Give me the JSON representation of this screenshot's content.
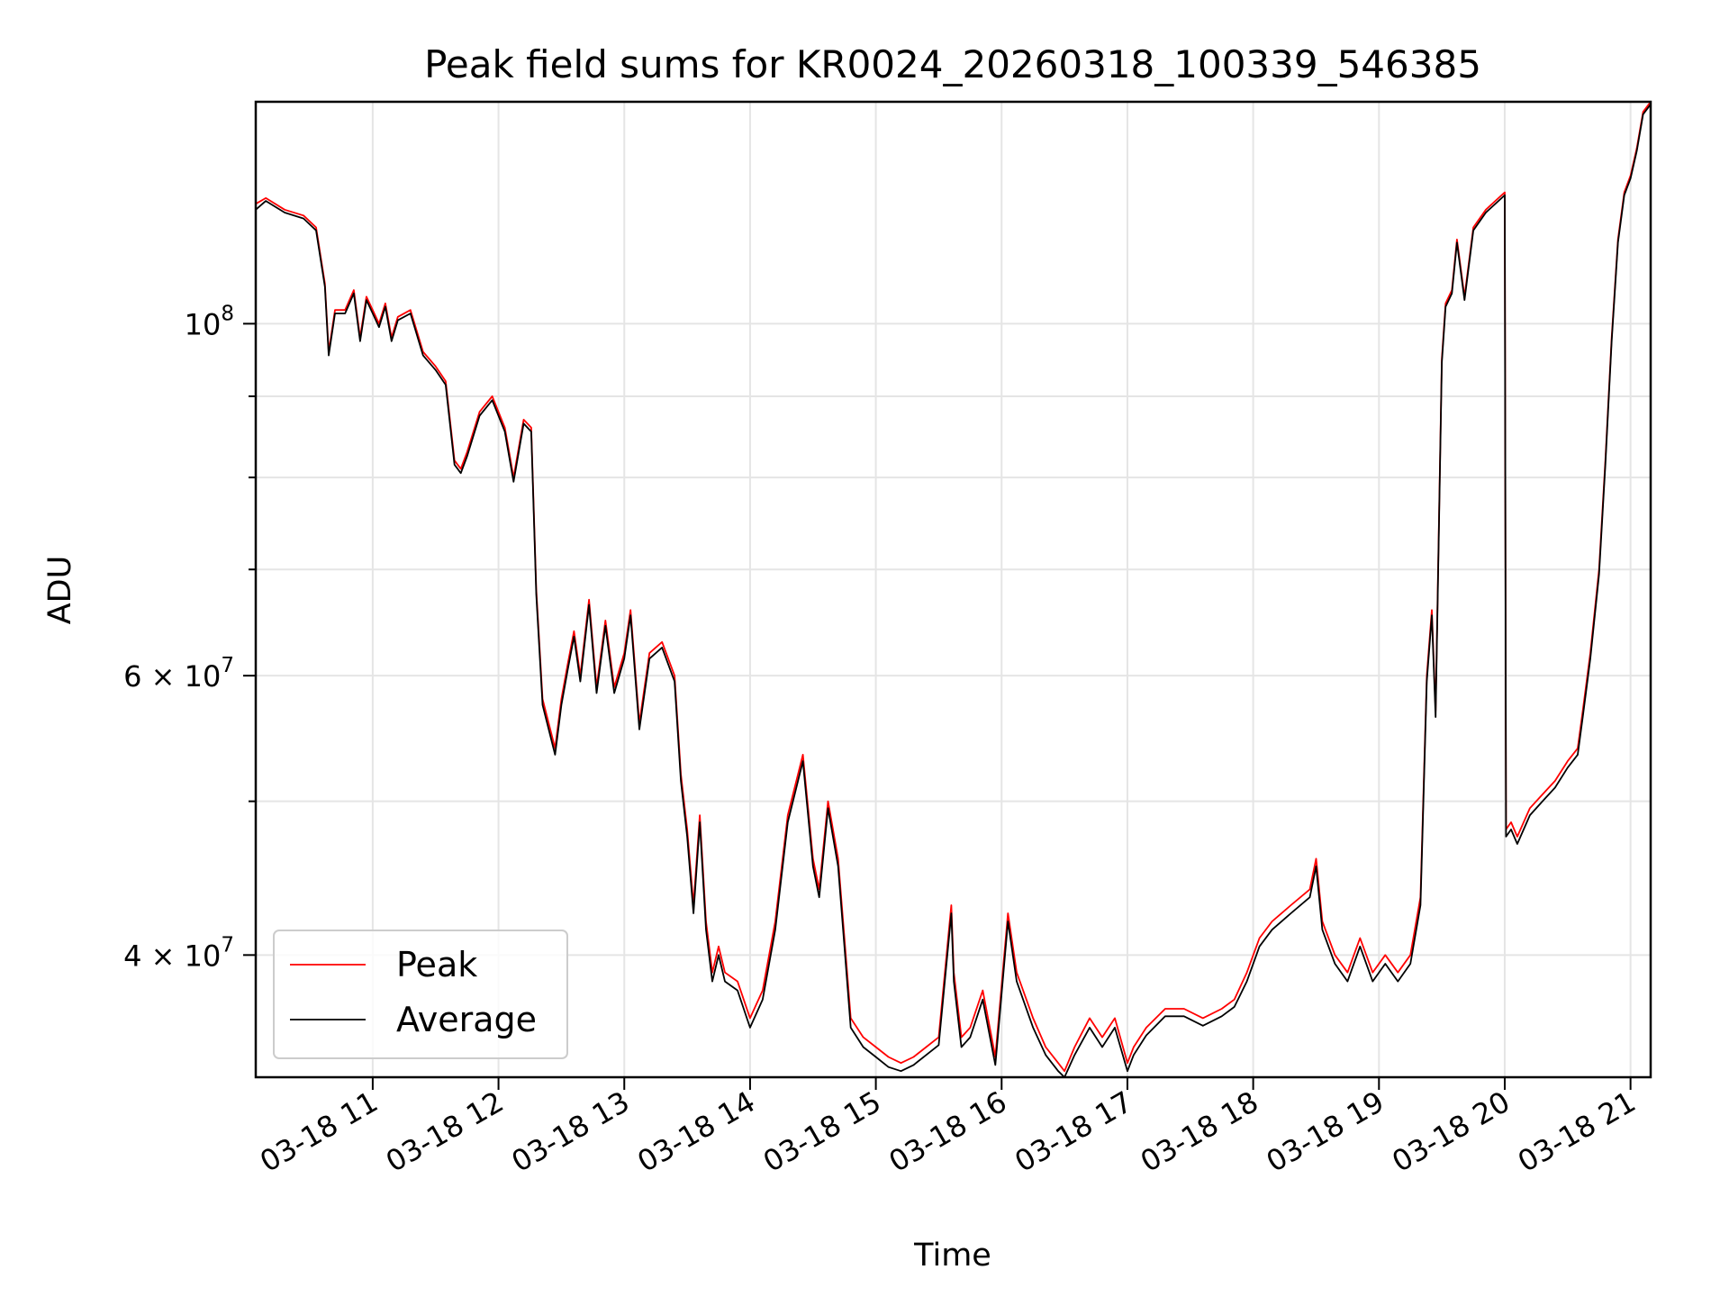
{
  "chart_data": {
    "type": "line",
    "title": "Peak field sums for KR0024_20260318_100339_546385",
    "xlabel": "Time",
    "ylabel": "ADU",
    "yscale": "log",
    "grid": true,
    "legend_position": "lower-left",
    "x_tick_labels": [
      "03-18 11",
      "03-18 12",
      "03-18 13",
      "03-18 14",
      "03-18 15",
      "03-18 16",
      "03-18 17",
      "03-18 18",
      "03-18 19",
      "03-18 20",
      "03-18 21"
    ],
    "x_tick_hours": [
      11,
      12,
      13,
      14,
      15,
      16,
      17,
      18,
      19,
      20,
      21
    ],
    "xlim_hours": [
      10.07,
      21.16
    ],
    "ylim": [
      33500000,
      138000000
    ],
    "y_ticks": [
      {
        "value": 100000000,
        "mantissa": "",
        "exp": "8"
      },
      {
        "value": 60000000,
        "mantissa": "6",
        "exp": "7"
      },
      {
        "value": 40000000,
        "mantissa": "4",
        "exp": "7"
      }
    ],
    "y_minor_ticks": [
      50000000,
      70000000,
      80000000,
      90000000
    ],
    "colors": {
      "peak": "#ff0000",
      "average": "#000000"
    },
    "series": [
      {
        "name": "Peak",
        "color": "#ff0000",
        "hours": [
          10.07,
          10.15,
          10.3,
          10.45,
          10.55,
          10.62,
          10.65,
          10.7,
          10.78,
          10.85,
          10.9,
          10.95,
          11.0,
          11.05,
          11.1,
          11.15,
          11.2,
          11.3,
          11.4,
          11.5,
          11.58,
          11.65,
          11.7,
          11.75,
          11.85,
          11.95,
          12.05,
          12.12,
          12.2,
          12.26,
          12.3,
          12.35,
          12.45,
          12.5,
          12.55,
          12.6,
          12.65,
          12.72,
          12.78,
          12.85,
          12.92,
          13.0,
          13.05,
          13.12,
          13.2,
          13.3,
          13.4,
          13.45,
          13.5,
          13.55,
          13.6,
          13.65,
          13.7,
          13.75,
          13.8,
          13.9,
          14.0,
          14.1,
          14.2,
          14.3,
          14.42,
          14.5,
          14.55,
          14.62,
          14.7,
          14.75,
          14.8,
          14.9,
          15.0,
          15.1,
          15.2,
          15.3,
          15.4,
          15.5,
          15.6,
          15.62,
          15.68,
          15.75,
          15.85,
          15.95,
          16.05,
          16.12,
          16.25,
          16.35,
          16.45,
          16.5,
          16.58,
          16.7,
          16.8,
          16.9,
          17.0,
          17.05,
          17.15,
          17.3,
          17.45,
          17.6,
          17.75,
          17.85,
          17.95,
          18.05,
          18.15,
          18.3,
          18.45,
          18.5,
          18.55,
          18.65,
          18.75,
          18.85,
          18.95,
          19.05,
          19.15,
          19.25,
          19.33,
          19.38,
          19.42,
          19.45,
          19.5,
          19.53,
          19.58,
          19.62,
          19.68,
          19.75,
          19.85,
          19.95,
          20.0,
          20.01,
          20.05,
          20.1,
          20.2,
          20.3,
          20.4,
          20.5,
          20.58,
          20.62,
          20.68,
          20.75,
          20.8,
          20.85,
          20.9,
          20.95,
          21.0,
          21.05,
          21.1,
          21.16
        ],
        "values": [
          119000000,
          120000000,
          118000000,
          117000000,
          115000000,
          106000000,
          96000000,
          102000000,
          102000000,
          105000000,
          98000000,
          104000000,
          102000000,
          100000000,
          103000000,
          98000000,
          101000000,
          102000000,
          96000000,
          94000000,
          92000000,
          82000000,
          81000000,
          83000000,
          88000000,
          90000000,
          86000000,
          80000000,
          87000000,
          86000000,
          68000000,
          58000000,
          54000000,
          58000000,
          61000000,
          64000000,
          60000000,
          67000000,
          59000000,
          65000000,
          59000000,
          62000000,
          66000000,
          56000000,
          62000000,
          63000000,
          60000000,
          52000000,
          48000000,
          43000000,
          49000000,
          42000000,
          39000000,
          40500000,
          39000000,
          38500000,
          36500000,
          38000000,
          42000000,
          49000000,
          53500000,
          46000000,
          44000000,
          50000000,
          46000000,
          41000000,
          36500000,
          35500000,
          35000000,
          34500000,
          34200000,
          34500000,
          35000000,
          35500000,
          43000000,
          39000000,
          35500000,
          36000000,
          38000000,
          34500000,
          42500000,
          39000000,
          36500000,
          35000000,
          34200000,
          33800000,
          35000000,
          36500000,
          35500000,
          36500000,
          34200000,
          35000000,
          36000000,
          37000000,
          37000000,
          36500000,
          37000000,
          37500000,
          39000000,
          41000000,
          42000000,
          43000000,
          44000000,
          46000000,
          42000000,
          40000000,
          39000000,
          41000000,
          39000000,
          40000000,
          39000000,
          40000000,
          43500000,
          60000000,
          66000000,
          57000000,
          95000000,
          103000000,
          105000000,
          113000000,
          104000000,
          115000000,
          118000000,
          120000000,
          121000000,
          48000000,
          48500000,
          47500000,
          49500000,
          50500000,
          51500000,
          53000000,
          54000000,
          57000000,
          62000000,
          70000000,
          82000000,
          98000000,
          113000000,
          121000000,
          124000000,
          129000000,
          136000000,
          138000000
        ]
      },
      {
        "name": "Average",
        "color": "#000000",
        "hours": [
          10.07,
          10.15,
          10.3,
          10.45,
          10.55,
          10.62,
          10.65,
          10.7,
          10.78,
          10.85,
          10.9,
          10.95,
          11.0,
          11.05,
          11.1,
          11.15,
          11.2,
          11.3,
          11.4,
          11.5,
          11.58,
          11.65,
          11.7,
          11.75,
          11.85,
          11.95,
          12.05,
          12.12,
          12.2,
          12.26,
          12.3,
          12.35,
          12.45,
          12.5,
          12.55,
          12.6,
          12.65,
          12.72,
          12.78,
          12.85,
          12.92,
          13.0,
          13.05,
          13.12,
          13.2,
          13.3,
          13.4,
          13.45,
          13.5,
          13.55,
          13.6,
          13.65,
          13.7,
          13.75,
          13.8,
          13.9,
          14.0,
          14.1,
          14.2,
          14.3,
          14.42,
          14.5,
          14.55,
          14.62,
          14.7,
          14.75,
          14.8,
          14.9,
          15.0,
          15.1,
          15.2,
          15.3,
          15.4,
          15.5,
          15.6,
          15.62,
          15.68,
          15.75,
          15.85,
          15.95,
          16.05,
          16.12,
          16.25,
          16.35,
          16.45,
          16.5,
          16.58,
          16.7,
          16.8,
          16.9,
          17.0,
          17.05,
          17.15,
          17.3,
          17.45,
          17.6,
          17.75,
          17.85,
          17.95,
          18.05,
          18.15,
          18.3,
          18.45,
          18.5,
          18.55,
          18.65,
          18.75,
          18.85,
          18.95,
          19.05,
          19.15,
          19.25,
          19.33,
          19.38,
          19.42,
          19.45,
          19.5,
          19.53,
          19.58,
          19.62,
          19.68,
          19.75,
          19.85,
          19.95,
          20.0,
          20.01,
          20.05,
          20.1,
          20.2,
          20.3,
          20.4,
          20.5,
          20.58,
          20.62,
          20.68,
          20.75,
          20.8,
          20.85,
          20.9,
          20.95,
          21.0,
          21.05,
          21.1,
          21.16
        ],
        "values": [
          118000000,
          119500000,
          117500000,
          116500000,
          114500000,
          105500000,
          95500000,
          101500000,
          101500000,
          104500000,
          97500000,
          103500000,
          101500000,
          99500000,
          102500000,
          97500000,
          100500000,
          101500000,
          95500000,
          93500000,
          91500000,
          81500000,
          80500000,
          82500000,
          87500000,
          89500000,
          85500000,
          79500000,
          86500000,
          85500000,
          67500000,
          57500000,
          53500000,
          57500000,
          60500000,
          63500000,
          59500000,
          66500000,
          58500000,
          64500000,
          58500000,
          61500000,
          65500000,
          55500000,
          61500000,
          62500000,
          59500000,
          51500000,
          47500000,
          42500000,
          48500000,
          41500000,
          38500000,
          40000000,
          38500000,
          38000000,
          36000000,
          37500000,
          41500000,
          48500000,
          53000000,
          45500000,
          43500000,
          49500000,
          45500000,
          40500000,
          36000000,
          35000000,
          34500000,
          34000000,
          33800000,
          34100000,
          34600000,
          35100000,
          42500000,
          38500000,
          35000000,
          35500000,
          37500000,
          34100000,
          42000000,
          38500000,
          36000000,
          34600000,
          33800000,
          33500000,
          34600000,
          36000000,
          35000000,
          36000000,
          33800000,
          34600000,
          35600000,
          36600000,
          36600000,
          36100000,
          36600000,
          37100000,
          38500000,
          40500000,
          41500000,
          42500000,
          43500000,
          45500000,
          41500000,
          39500000,
          38500000,
          40500000,
          38500000,
          39500000,
          38500000,
          39500000,
          43000000,
          59500000,
          65500000,
          56500000,
          94500000,
          102500000,
          104500000,
          112500000,
          103500000,
          114500000,
          117500000,
          119500000,
          120500000,
          47500000,
          48000000,
          47000000,
          49000000,
          50000000,
          51000000,
          52500000,
          53500000,
          56500000,
          61500000,
          69500000,
          81500000,
          97500000,
          112500000,
          120500000,
          123500000,
          128500000,
          135500000,
          137500000
        ]
      }
    ]
  }
}
